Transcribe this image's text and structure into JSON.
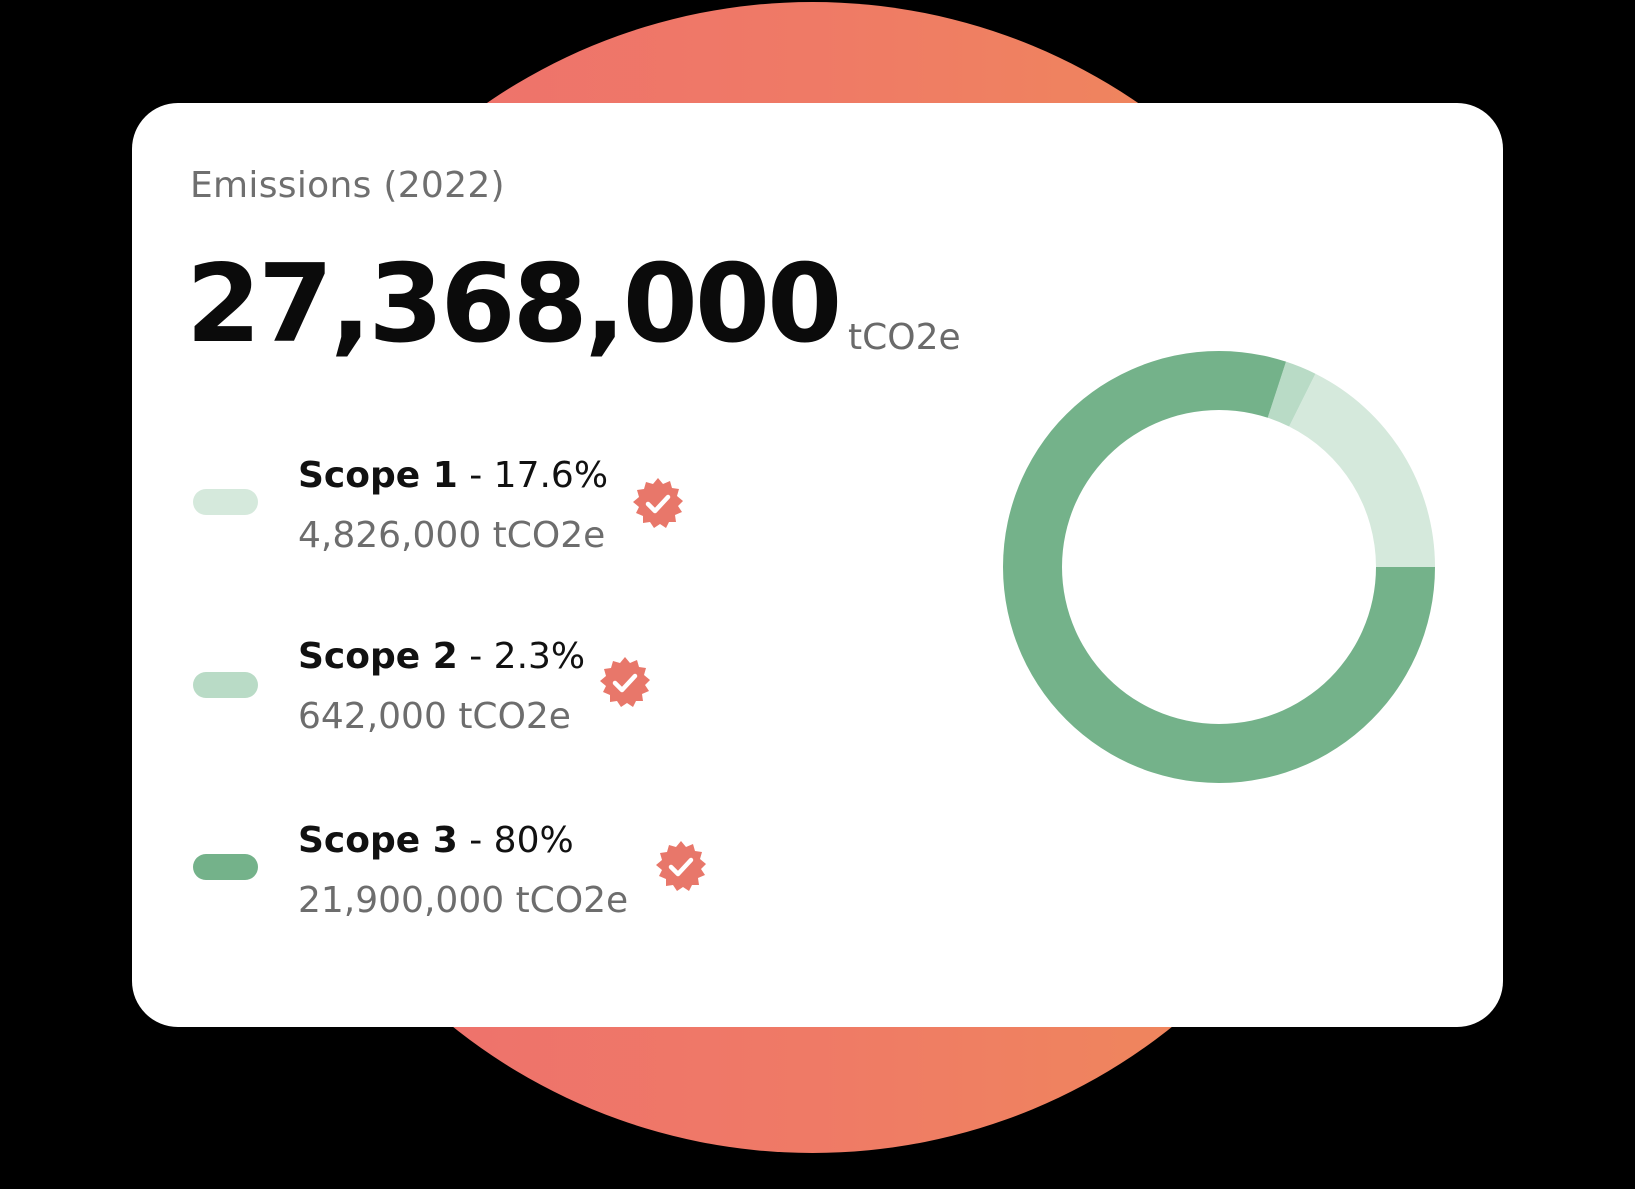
{
  "card": {
    "title": "Emissions (2022)",
    "total_value": "27,368,000",
    "total_unit": "tCO2e"
  },
  "legend": [
    {
      "name": "Scope 1",
      "separator": " - ",
      "percent": "17.6%",
      "value": "4,826,000 tCO2e",
      "color": "#D5E9DC",
      "verified": true,
      "icon": "verified-badge-icon"
    },
    {
      "name": "Scope 2",
      "separator": " - ",
      "percent": "2.3%",
      "value": "642,000 tCO2e",
      "color": "#B9DBC6",
      "verified": true,
      "icon": "verified-badge-icon"
    },
    {
      "name": "Scope 3",
      "separator": " - ",
      "percent": "80%",
      "value": "21,900,000 tCO2e",
      "color": "#74B28A",
      "verified": true,
      "icon": "verified-badge-icon"
    }
  ],
  "colors": {
    "badge": "#E8776A",
    "background_circle_left": "#EE6E6F",
    "background_circle_right": "#EF8C58",
    "card": "#FFFFFF",
    "page": "#000000"
  },
  "chart_data": {
    "type": "pie",
    "subtype": "donut",
    "title": "Emissions (2022)",
    "total": 27368000,
    "unit": "tCO2e",
    "categories": [
      "Scope 1",
      "Scope 2",
      "Scope 3"
    ],
    "values": [
      4826000,
      642000,
      21900000
    ],
    "percentages": [
      17.6,
      2.3,
      80
    ],
    "colors": [
      "#D5E9DC",
      "#B9DBC6",
      "#74B28A"
    ],
    "start_angle": "3 o'clock, counter-clockwise",
    "legend_position": "left"
  }
}
